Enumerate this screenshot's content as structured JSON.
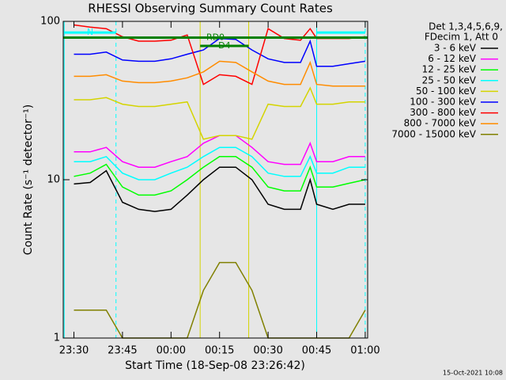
{
  "chart_data": {
    "type": "line",
    "title": "RHESSI Observing Summary Count Rates",
    "xlabel": "Start Time (18-Sep-08 23:26:42)",
    "ylabel": "Count Rate (s⁻¹ detector⁻¹)",
    "legend_header": [
      "Det 1,3,4,5,6,9,",
      "FDecim 1, Att 0"
    ],
    "footer": "15-Oct-2021 10:08",
    "log_y": true,
    "xlim": [
      "23:26:42",
      "01:00:45"
    ],
    "ylim": [
      1,
      100
    ],
    "xticks": [
      "23:30",
      "23:45",
      "00:00",
      "00:15",
      "00:30",
      "00:45",
      "01:00"
    ],
    "yticks": [
      1,
      10,
      100
    ],
    "x": [
      "23:30",
      "23:35",
      "23:40",
      "23:45",
      "23:50",
      "23:55",
      "00:00",
      "00:05",
      "00:10",
      "00:15",
      "00:20",
      "00:25",
      "00:30",
      "00:35",
      "00:40",
      "00:43",
      "00:45",
      "00:50",
      "00:55",
      "01:00"
    ],
    "series": [
      {
        "name": "3 - 6 keV",
        "color": "#000000",
        "values": [
          9.4,
          9.6,
          11.4,
          7.2,
          6.5,
          6.3,
          6.5,
          8,
          10,
          12,
          12,
          10,
          7,
          6.5,
          6.5,
          10,
          7,
          6.5,
          7,
          7
        ]
      },
      {
        "name": "6 - 12 keV",
        "color": "#ff00ff",
        "values": [
          15,
          15,
          16,
          13,
          12,
          12,
          13,
          14,
          17,
          19,
          19,
          16,
          13,
          12.5,
          12.5,
          17,
          13,
          13,
          14,
          14
        ]
      },
      {
        "name": "12 - 25 keV",
        "color": "#00ff00",
        "values": [
          10.5,
          11,
          12.5,
          9,
          8,
          8,
          8.5,
          10,
          12,
          14,
          14,
          12,
          9,
          8.5,
          8.5,
          12,
          9,
          9,
          9.5,
          10
        ]
      },
      {
        "name": "25 - 50 keV",
        "color": "#00ffff",
        "values": [
          13,
          13,
          14,
          11,
          10,
          10,
          11,
          12,
          14,
          16,
          16,
          14,
          11,
          10.5,
          10.5,
          14,
          11,
          11,
          12,
          12
        ]
      },
      {
        "name": "50 - 100 keV",
        "color": "#d4d400",
        "values": [
          32,
          32,
          33,
          30,
          29,
          29,
          30,
          31,
          18,
          19,
          19,
          18,
          30,
          29,
          29,
          38,
          30,
          30,
          31,
          31
        ]
      },
      {
        "name": "100 - 300 keV",
        "color": "#0000ff",
        "values": [
          62,
          62,
          64,
          57,
          56,
          56,
          58,
          62,
          66,
          78,
          77,
          66,
          58,
          55,
          55,
          75,
          52,
          52,
          54,
          56
        ]
      },
      {
        "name": "300 - 800 keV",
        "color": "#ff0000",
        "values": [
          95,
          92,
          90,
          80,
          75,
          75,
          76,
          82,
          40,
          46,
          45,
          40,
          90,
          78,
          76,
          90,
          78,
          78,
          78,
          80
        ]
      },
      {
        "name": "800 - 7000 keV",
        "color": "#ff8c00",
        "values": [
          45,
          45,
          46,
          42,
          41,
          41,
          42,
          44,
          48,
          56,
          55,
          48,
          42,
          40,
          40,
          55,
          40,
          39,
          39,
          39
        ]
      },
      {
        "name": "7000 - 15000 keV",
        "color": "#808000",
        "values": [
          1.5,
          1.5,
          1.5,
          1,
          1,
          1,
          1,
          1,
          2,
          3,
          3,
          2,
          1,
          1,
          1,
          1,
          1,
          1,
          1,
          1.5
        ]
      }
    ],
    "vlines": [
      {
        "x": "23:27",
        "color": "#00ffff",
        "dashed": false
      },
      {
        "x": "23:43",
        "color": "#00ffff",
        "dashed": true
      },
      {
        "x": "00:09",
        "color": "#d4d400",
        "dashed": false
      },
      {
        "x": "00:24",
        "color": "#d4d400",
        "dashed": false
      },
      {
        "x": "00:45",
        "color": "#00ffff",
        "dashed": false
      },
      {
        "x": "01:00",
        "color": "#00ffff",
        "dashed": true
      }
    ],
    "flags": [
      {
        "label": "RD0",
        "from": "23:26:42",
        "to": "01:00:45",
        "level": 79,
        "color": "#008000"
      },
      {
        "label": "N",
        "from": "23:27",
        "to": "23:43",
        "level": 85,
        "color": "#00ffff"
      },
      {
        "from": "00:45",
        "to": "01:00",
        "level": 85,
        "color": "#00ffff"
      },
      {
        "label": "D4",
        "from": "00:09",
        "to": "00:24",
        "level": 70,
        "color": "#008000"
      }
    ]
  }
}
